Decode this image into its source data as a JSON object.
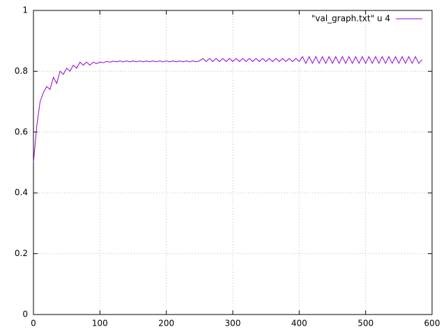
{
  "chart_data": {
    "type": "line",
    "x": [
      0,
      5,
      10,
      15,
      20,
      25,
      30,
      35,
      40,
      45,
      50,
      55,
      60,
      65,
      70,
      75,
      80,
      85,
      90,
      95,
      100,
      105,
      110,
      115,
      120,
      125,
      130,
      135,
      140,
      145,
      150,
      155,
      160,
      165,
      170,
      175,
      180,
      185,
      190,
      195,
      200,
      205,
      210,
      215,
      220,
      225,
      230,
      235,
      240,
      245,
      250,
      255,
      260,
      265,
      270,
      275,
      280,
      285,
      290,
      295,
      300,
      305,
      310,
      315,
      320,
      325,
      330,
      335,
      340,
      345,
      350,
      355,
      360,
      365,
      370,
      375,
      380,
      385,
      390,
      395,
      400,
      405,
      410,
      415,
      420,
      425,
      430,
      435,
      440,
      445,
      450,
      455,
      460,
      465,
      470,
      475,
      480,
      485,
      490,
      495,
      500,
      505,
      510,
      515,
      520,
      525,
      530,
      535,
      540,
      545,
      550,
      555,
      560,
      565,
      570,
      575,
      580,
      585
    ],
    "series": [
      {
        "name": "\"val_graph.txt\" u 4",
        "color": "#9400d3",
        "values": [
          0.5,
          0.62,
          0.7,
          0.73,
          0.75,
          0.74,
          0.78,
          0.76,
          0.8,
          0.79,
          0.81,
          0.8,
          0.82,
          0.81,
          0.83,
          0.82,
          0.83,
          0.82,
          0.83,
          0.825,
          0.83,
          0.828,
          0.832,
          0.83,
          0.833,
          0.831,
          0.834,
          0.831,
          0.834,
          0.831,
          0.834,
          0.831,
          0.834,
          0.831,
          0.834,
          0.831,
          0.834,
          0.831,
          0.834,
          0.831,
          0.834,
          0.831,
          0.834,
          0.831,
          0.834,
          0.831,
          0.834,
          0.831,
          0.834,
          0.831,
          0.834,
          0.842,
          0.832,
          0.842,
          0.832,
          0.842,
          0.832,
          0.842,
          0.832,
          0.842,
          0.832,
          0.842,
          0.832,
          0.842,
          0.832,
          0.842,
          0.832,
          0.842,
          0.832,
          0.842,
          0.832,
          0.842,
          0.832,
          0.842,
          0.832,
          0.842,
          0.832,
          0.842,
          0.832,
          0.842,
          0.832,
          0.848,
          0.826,
          0.848,
          0.826,
          0.848,
          0.826,
          0.848,
          0.826,
          0.848,
          0.826,
          0.848,
          0.826,
          0.848,
          0.826,
          0.848,
          0.826,
          0.848,
          0.826,
          0.848,
          0.826,
          0.848,
          0.826,
          0.848,
          0.826,
          0.848,
          0.826,
          0.848,
          0.826,
          0.848,
          0.826,
          0.848,
          0.826,
          0.848,
          0.826,
          0.848,
          0.826,
          0.838
        ]
      }
    ],
    "xlim": [
      0,
      600
    ],
    "ylim": [
      0,
      1
    ],
    "xticks": [
      0,
      100,
      200,
      300,
      400,
      500,
      600
    ],
    "yticks": [
      0,
      0.2,
      0.4,
      0.6,
      0.8,
      1
    ],
    "grid": true,
    "legend": "top-right"
  }
}
